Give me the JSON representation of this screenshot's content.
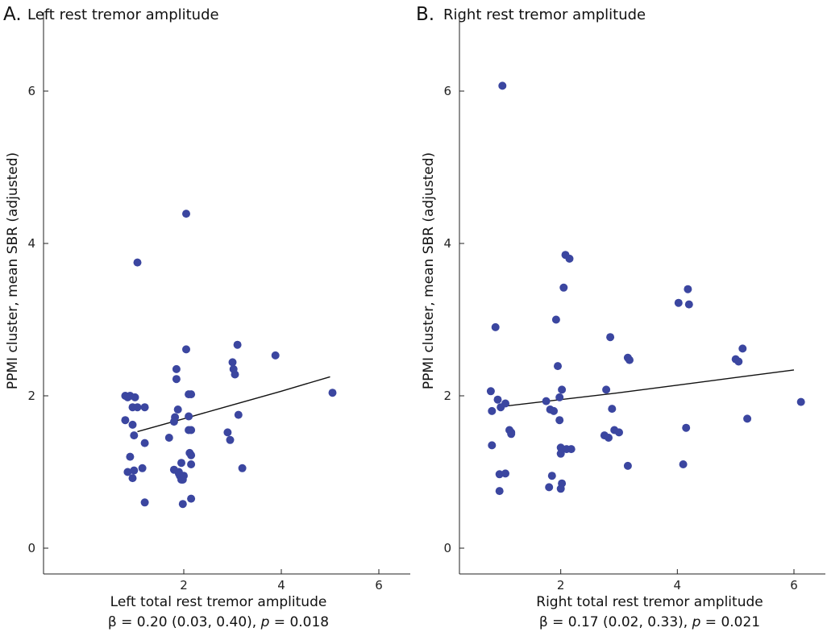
{
  "colors": {
    "point": "#3b46a0",
    "line": "#111111",
    "axis": "#222222"
  },
  "chart_data": [
    {
      "type": "scatter",
      "panel": "A.",
      "title": "Left rest tremor amplitude",
      "xlabel": "Left total rest tremor amplitude",
      "ylabel": "PPMI cluster, mean SBR (adjusted)",
      "stat": {
        "beta": "β = 0.20 (0.03, 0.40), ",
        "p_sym": "p",
        "p_val": " = 0.018"
      },
      "xlim": [
        0,
        6.5
      ],
      "ylim": [
        -0.3,
        6.8
      ],
      "xticks": [
        2,
        4,
        6
      ],
      "yticks": [
        0,
        2,
        4,
        6
      ],
      "x": [
        0.8,
        0.8,
        0.85,
        0.9,
        0.85,
        0.9,
        0.95,
        0.95,
        0.95,
        0.98,
        0.98,
        1.0,
        1.05,
        1.05,
        1.15,
        1.2,
        1.2,
        1.2,
        1.7,
        1.8,
        1.8,
        1.82,
        1.85,
        1.85,
        1.88,
        1.9,
        1.9,
        1.92,
        1.95,
        1.95,
        1.98,
        1.98,
        2.0,
        2.05,
        2.05,
        2.1,
        2.1,
        2.1,
        2.12,
        2.15,
        2.15,
        2.15,
        2.15,
        2.15,
        2.9,
        2.95,
        3.0,
        3.02,
        3.05,
        3.1,
        3.12,
        3.2,
        3.88,
        5.05
      ],
      "y": [
        2.0,
        1.68,
        1.0,
        1.2,
        1.98,
        2.0,
        1.85,
        1.62,
        0.92,
        1.48,
        1.02,
        1.98,
        3.75,
        1.85,
        1.05,
        1.85,
        1.38,
        0.6,
        1.45,
        1.03,
        1.66,
        1.72,
        2.22,
        2.35,
        1.82,
        1.0,
        0.98,
        0.95,
        0.9,
        1.12,
        0.58,
        0.9,
        0.95,
        2.61,
        4.39,
        1.55,
        2.02,
        1.73,
        1.25,
        2.02,
        0.65,
        1.55,
        1.22,
        1.1,
        1.52,
        1.42,
        2.44,
        2.35,
        2.28,
        2.67,
        1.75,
        1.05,
        2.53,
        2.04
      ],
      "fit": {
        "x": [
          1.05,
          2.0,
          3.0,
          4.0,
          5.0
        ],
        "y": [
          1.53,
          1.7,
          1.88,
          2.06,
          2.25
        ]
      }
    },
    {
      "type": "scatter",
      "panel": "B.",
      "title": "Right rest tremor amplitude",
      "xlabel": "Right total rest tremor amplitude",
      "ylabel": "PPMI cluster, mean SBR (adjusted)",
      "stat": {
        "beta": "β = 0.17 (0.02, 0.33), ",
        "p_sym": "p",
        "p_val": " = 0.021"
      },
      "xlim": [
        0,
        6.5
      ],
      "ylim": [
        -0.3,
        6.8
      ],
      "xticks": [
        2,
        4,
        6
      ],
      "yticks": [
        0,
        2,
        4,
        6
      ],
      "x": [
        0.8,
        0.82,
        0.82,
        0.88,
        0.92,
        0.95,
        0.95,
        0.97,
        1.05,
        1.05,
        1.12,
        1.15,
        1.15,
        1.75,
        1.8,
        1.82,
        1.85,
        1.88,
        1.92,
        1.95,
        1.98,
        1.98,
        2.0,
        2.0,
        2.0,
        2.02,
        2.02,
        2.05,
        2.08,
        2.1,
        2.15,
        2.18,
        2.75,
        2.78,
        2.82,
        2.85,
        2.88,
        2.92,
        3.0,
        3.15,
        3.15,
        3.18,
        4.02,
        4.1,
        4.15,
        4.18,
        4.2,
        5.0,
        5.05,
        5.12,
        5.2,
        6.12,
        1.0
      ],
      "y": [
        2.06,
        1.8,
        1.35,
        2.9,
        1.95,
        0.97,
        0.75,
        1.85,
        1.9,
        0.98,
        1.55,
        1.5,
        1.52,
        1.93,
        0.8,
        1.82,
        0.95,
        1.8,
        3.0,
        2.39,
        1.98,
        1.68,
        1.32,
        1.24,
        0.78,
        2.08,
        0.85,
        3.42,
        3.85,
        1.3,
        3.8,
        1.3,
        1.48,
        2.08,
        1.45,
        2.77,
        1.83,
        1.55,
        1.52,
        1.08,
        2.5,
        2.47,
        3.22,
        1.1,
        1.58,
        3.4,
        3.2,
        2.48,
        2.45,
        2.62,
        1.7,
        1.92,
        6.07
      ],
      "fit": {
        "x": [
          1.0,
          2.0,
          3.0,
          4.0,
          5.0,
          6.0
        ],
        "y": [
          1.86,
          1.95,
          2.04,
          2.14,
          2.24,
          2.34
        ]
      }
    }
  ]
}
